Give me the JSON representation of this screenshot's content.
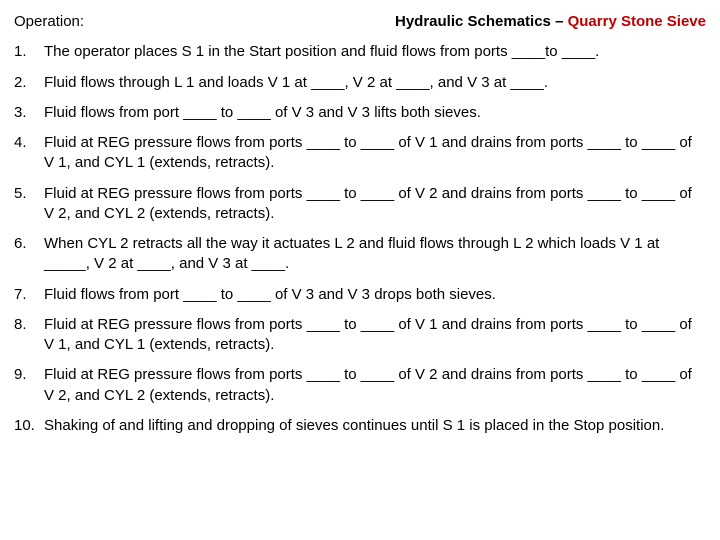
{
  "header": {
    "operation_label": "Operation:",
    "title_main": "Hydraulic Schematics – ",
    "title_sub": "Quarry Stone Sieve"
  },
  "items": [
    {
      "n": "1.",
      "t": "The operator places S 1 in the Start position and fluid flows from ports ____to ____."
    },
    {
      "n": "2.",
      "t": "Fluid flows through L 1 and loads V 1 at ____, V 2 at ____, and V 3 at ____."
    },
    {
      "n": "3.",
      "t": "Fluid flows from port ____ to ____ of V 3 and V 3 lifts both sieves."
    },
    {
      "n": "4.",
      "t": "Fluid at REG pressure flows from ports ____ to ____ of V 1 and drains from ports ____ to ____ of V 1, and CYL 1 (extends, retracts)."
    },
    {
      "n": "5.",
      "t": "Fluid at REG pressure flows from ports ____ to ____ of V 2 and drains from ports ____ to ____ of V 2, and CYL 2 (extends, retracts)."
    },
    {
      "n": "6.",
      "t": "When CYL 2 retracts all the way it actuates L 2 and fluid flows through L 2 which loads V 1 at _____, V 2 at ____, and V 3 at ____."
    },
    {
      "n": "7.",
      "t": "Fluid flows from port ____ to ____ of V 3 and V 3 drops both sieves."
    },
    {
      "n": "8.",
      "t": "Fluid at REG pressure flows from ports ____ to ____ of V 1 and drains from ports ____ to ____ of V 1, and CYL 1 (extends, retracts)."
    },
    {
      "n": "9.",
      "t": "Fluid at REG pressure flows from ports ____ to ____ of V 2 and drains from ports ____ to ____ of V 2, and CYL 2 (extends, retracts)."
    },
    {
      "n": "10.",
      "t": "Shaking of and lifting and dropping of sieves continues until S 1 is placed in the Stop position."
    }
  ]
}
